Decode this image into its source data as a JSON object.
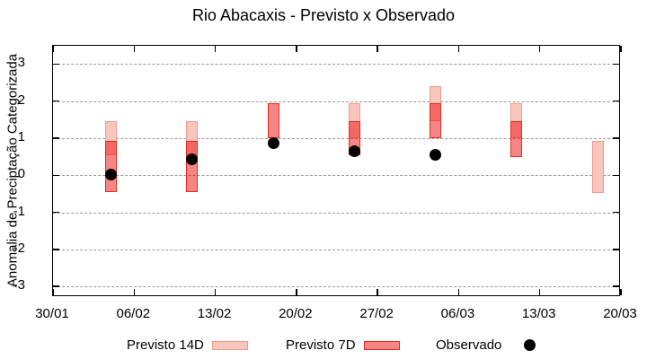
{
  "title": "Rio Abacaxis - Previsto x Observado",
  "y_axis_label": "Anomalia de Preciptação Categorizada",
  "legend": {
    "items": [
      {
        "label": "Previsto 14D",
        "marker": "light-red-box"
      },
      {
        "label": "Previsto 7D",
        "marker": "red-box"
      },
      {
        "label": "Observado",
        "marker": "black-dot"
      }
    ]
  },
  "colors": {
    "previsto_14d_fill": "#f9c6be",
    "previsto_14d_border": "#f2998e",
    "previsto_7d_fill": "rgba(234,0,0,0.475)",
    "previsto_7d_border": "#e8291c",
    "observado": "#000000",
    "gridline": "#999999",
    "frame": "#000000",
    "background": "#ffffff",
    "text": "#000000"
  },
  "chart_data": {
    "type": "bar",
    "subtype": "floating-range-forecast-bars-with-observed-points",
    "title": "Rio Abacaxis - Previsto x Observado",
    "xlabel": "",
    "ylabel": "Anomalia de Preciptação Categorizada",
    "grid": "horizontal-dashed",
    "legend_position": "bottom",
    "ylim": [
      -3.3,
      3.5
    ],
    "y_ticks": [
      3,
      2,
      1,
      0,
      -1,
      -2,
      -3
    ],
    "x_ticks": [
      {
        "day": 0,
        "label": "30/01"
      },
      {
        "day": 7,
        "label": "06/02"
      },
      {
        "day": 14,
        "label": "13/02"
      },
      {
        "day": 21,
        "label": "20/02"
      },
      {
        "day": 28,
        "label": "27/02"
      },
      {
        "day": 35,
        "label": "06/03"
      },
      {
        "day": 42,
        "label": "13/03"
      },
      {
        "day": 49,
        "label": "20/03"
      }
    ],
    "points": [
      {
        "date": "04/02",
        "day": 5,
        "previsto_14d": [
          0.55,
          1.45
        ],
        "previsto_7d": [
          -0.45,
          0.93
        ],
        "observado": 0.03
      },
      {
        "date": "11/02",
        "day": 12,
        "previsto_14d": [
          0.55,
          1.45
        ],
        "previsto_7d": [
          -0.45,
          0.93
        ],
        "observado": 0.42
      },
      {
        "date": "18/02",
        "day": 19,
        "previsto_14d": null,
        "previsto_7d": [
          1.0,
          1.95
        ],
        "observado": 0.87
      },
      {
        "date": "25/02",
        "day": 26,
        "previsto_14d": [
          1.0,
          1.95
        ],
        "previsto_7d": [
          0.53,
          1.45
        ],
        "observado": 0.66
      },
      {
        "date": "04/03",
        "day": 33,
        "previsto_14d": [
          1.45,
          2.4
        ],
        "previsto_7d": [
          1.0,
          1.95
        ],
        "observado": 0.55
      },
      {
        "date": "11/03",
        "day": 40,
        "previsto_14d": [
          1.0,
          1.95
        ],
        "previsto_7d": [
          0.5,
          1.45
        ],
        "observado": null
      },
      {
        "date": "18/03",
        "day": 47,
        "previsto_14d": [
          -0.48,
          0.93
        ],
        "previsto_7d": null,
        "observado": null
      }
    ]
  }
}
